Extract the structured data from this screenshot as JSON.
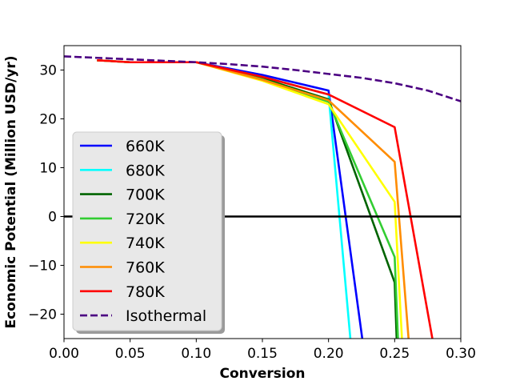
{
  "chart_data": {
    "type": "line",
    "title": "",
    "xlabel": "Conversion",
    "ylabel": "Economic Potential (Million USD/yr)",
    "xlim": [
      0.0,
      0.3
    ],
    "ylim": [
      -25,
      35
    ],
    "xticks": [
      "0.00",
      "0.05",
      "0.10",
      "0.15",
      "0.20",
      "0.25",
      "0.30"
    ],
    "yticks": [
      "30",
      "20",
      "10",
      "0",
      "−10",
      "−20"
    ],
    "grid": false,
    "legend_position": "lower-left",
    "reference_line": {
      "y": 0,
      "color": "#000000"
    },
    "series": [
      {
        "name": "660K",
        "color": "#0000ff",
        "dash": "solid",
        "x": [
          0.025,
          0.05,
          0.1,
          0.15,
          0.2,
          0.2255
        ],
        "y": [
          32.0,
          31.6,
          31.6,
          29.0,
          25.8,
          -25
        ]
      },
      {
        "name": "680K",
        "color": "#00ffff",
        "dash": "solid",
        "x": [
          0.025,
          0.05,
          0.1,
          0.15,
          0.2,
          0.2165
        ],
        "y": [
          32.0,
          31.6,
          31.6,
          28.6,
          25.0,
          -25
        ]
      },
      {
        "name": "700K",
        "color": "#006400",
        "dash": "solid",
        "x": [
          0.025,
          0.05,
          0.1,
          0.15,
          0.2,
          0.25,
          0.2515
        ],
        "y": [
          32.0,
          31.6,
          31.6,
          28.3,
          24.0,
          -13.5,
          -25
        ]
      },
      {
        "name": "720K",
        "color": "#32cd32",
        "dash": "solid",
        "x": [
          0.025,
          0.05,
          0.1,
          0.15,
          0.2,
          0.25,
          0.2525
        ],
        "y": [
          32.0,
          31.6,
          31.6,
          28.1,
          23.5,
          -8.3,
          -25
        ]
      },
      {
        "name": "740K",
        "color": "#ffff00",
        "dash": "solid",
        "x": [
          0.025,
          0.05,
          0.1,
          0.15,
          0.2,
          0.25,
          0.2555
        ],
        "y": [
          32.0,
          31.6,
          31.6,
          27.8,
          23.0,
          3.0,
          -25
        ]
      },
      {
        "name": "760K",
        "color": "#ff8c00",
        "dash": "solid",
        "x": [
          0.025,
          0.05,
          0.1,
          0.15,
          0.2,
          0.25,
          0.2605
        ],
        "y": [
          32.0,
          31.6,
          31.6,
          28.0,
          23.8,
          11.2,
          -25
        ]
      },
      {
        "name": "780K",
        "color": "#ff0000",
        "dash": "solid",
        "x": [
          0.025,
          0.05,
          0.1,
          0.15,
          0.2,
          0.25,
          0.2785
        ],
        "y": [
          32.0,
          31.6,
          31.6,
          28.6,
          25.0,
          18.3,
          -25
        ]
      },
      {
        "name": "Isothermal",
        "color": "#4b0082",
        "dash": "dashed",
        "x": [
          0.0,
          0.025,
          0.05,
          0.075,
          0.1,
          0.125,
          0.15,
          0.175,
          0.2,
          0.225,
          0.25,
          0.275,
          0.3
        ],
        "y": [
          32.8,
          32.5,
          32.2,
          31.9,
          31.6,
          31.2,
          30.7,
          30.0,
          29.2,
          28.4,
          27.3,
          25.8,
          23.6
        ]
      }
    ]
  }
}
